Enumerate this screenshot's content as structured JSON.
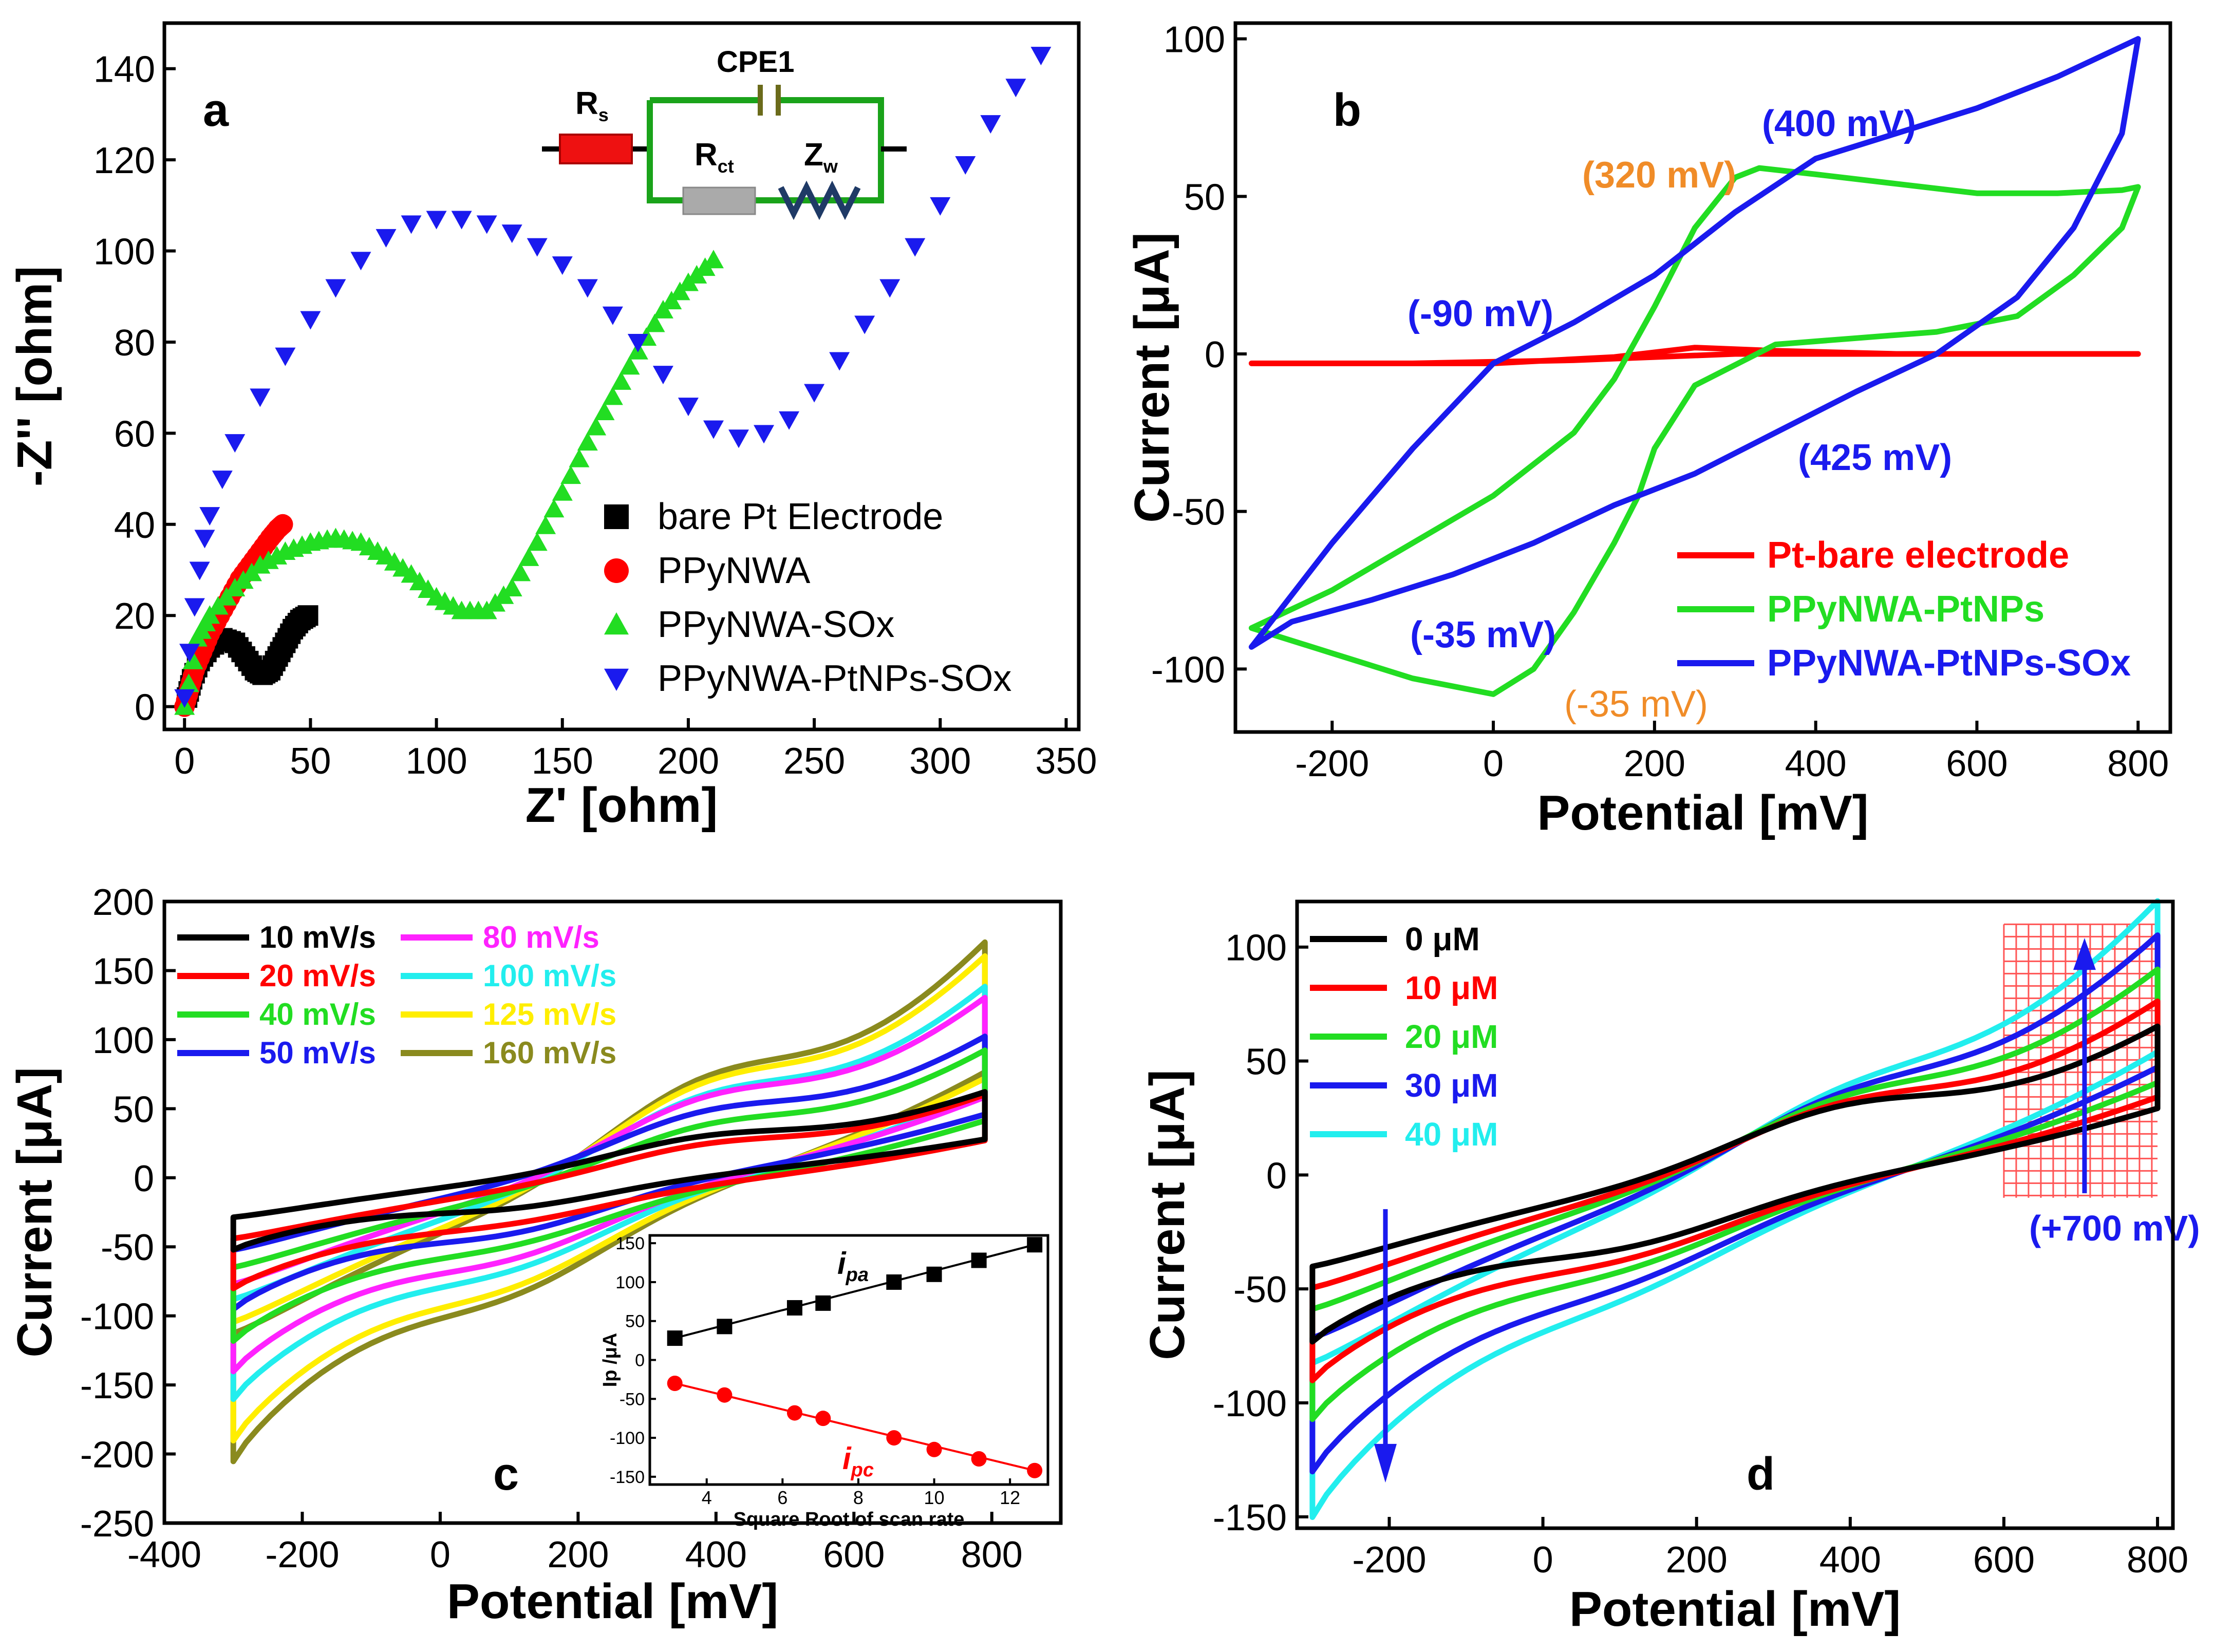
{
  "chart_data": [
    {
      "panel": "a",
      "type": "scatter",
      "xlabel": "Z' [ohm]",
      "ylabel": "-Z'' [ohm]",
      "xlim": [
        -8,
        355
      ],
      "ylim": [
        -5,
        150
      ],
      "xticks": [
        0,
        50,
        100,
        150,
        200,
        250,
        300,
        350
      ],
      "yticks": [
        0,
        20,
        40,
        60,
        80,
        100,
        120,
        140
      ],
      "legend_position": "bottom-right",
      "circuit_labels": {
        "rs": "R",
        "rs_sub": "s",
        "cpe": "CPE1",
        "rct": "R",
        "rct_sub": "ct",
        "zw": "Z",
        "zw_sub": "w"
      },
      "series": [
        {
          "name": "bare Pt Electrode",
          "marker": "square",
          "color": "#000000",
          "x": [
            1,
            3,
            6,
            10,
            15,
            20,
            24,
            28,
            31,
            34,
            37,
            40,
            43,
            46,
            49
          ],
          "y": [
            2,
            6,
            10,
            13,
            15,
            14,
            11,
            8,
            7,
            8,
            11,
            14,
            17,
            19,
            20
          ]
        },
        {
          "name": "PPyNWA",
          "marker": "circle",
          "color": "#ff0000",
          "x": [
            0,
            2,
            4,
            7,
            10,
            14,
            18,
            22,
            26,
            30,
            34,
            37,
            39
          ],
          "y": [
            0,
            4,
            8,
            12,
            16,
            20,
            24,
            28,
            31,
            34,
            37,
            39,
            40
          ]
        },
        {
          "name": "PPyNWA-SOx",
          "marker": "triangle-up",
          "color": "#22dd22",
          "x": [
            0,
            5,
            10,
            20,
            30,
            40,
            50,
            60,
            70,
            80,
            90,
            100,
            110,
            120,
            130,
            140,
            150,
            160,
            170,
            180,
            190,
            200,
            210
          ],
          "y": [
            0,
            15,
            20,
            26,
            31,
            34,
            36,
            37,
            36,
            33,
            29,
            24,
            21,
            21,
            26,
            36,
            47,
            58,
            68,
            78,
            87,
            93,
            98
          ]
        },
        {
          "name": "PPyNWA-PtNPs-SOx",
          "marker": "triangle-down",
          "color": "#1a1aee",
          "x": [
            0,
            2,
            4,
            6,
            8,
            10,
            15,
            20,
            30,
            40,
            50,
            60,
            70,
            80,
            90,
            100,
            110,
            120,
            130,
            140,
            150,
            160,
            170,
            180,
            190,
            200,
            210,
            220,
            230,
            240,
            250,
            260,
            270,
            280,
            290,
            300,
            310,
            320,
            330,
            340
          ],
          "y": [
            2,
            12,
            22,
            30,
            37,
            42,
            50,
            58,
            68,
            77,
            85,
            92,
            98,
            103,
            106,
            107,
            107,
            106,
            104,
            101,
            97,
            92,
            86,
            80,
            73,
            66,
            61,
            59,
            60,
            63,
            69,
            76,
            84,
            92,
            101,
            110,
            119,
            128,
            136,
            143
          ]
        }
      ]
    },
    {
      "panel": "b",
      "type": "line",
      "xlabel": "Potential [mV]",
      "ylabel": "Current [μA]",
      "xlim": [
        -320,
        840
      ],
      "ylim": [
        -120,
        105
      ],
      "xticks": [
        -200,
        0,
        200,
        400,
        600,
        800
      ],
      "yticks": [
        -100,
        -50,
        0,
        50,
        100
      ],
      "legend_position": "bottom-right",
      "series": [
        {
          "name": "Pt-bare electrode",
          "color": "#ff0000",
          "x": [
            -300,
            0,
            150,
            250,
            350,
            500,
            800,
            650,
            450,
            300,
            200,
            100,
            -100,
            -300
          ],
          "y": [
            -3,
            -3,
            -1,
            2,
            1,
            0,
            0,
            0,
            0,
            0,
            -1,
            -2,
            -3,
            -3
          ]
        },
        {
          "name": "PPyNWA-PtNPs",
          "color": "#22dd22",
          "x": [
            -300,
            -200,
            -100,
            0,
            100,
            150,
            200,
            250,
            300,
            330,
            400,
            500,
            600,
            700,
            780,
            800,
            780,
            720,
            650,
            550,
            450,
            350,
            250,
            200,
            180,
            150,
            100,
            50,
            0,
            -100,
            -200,
            -300
          ],
          "y": [
            -87,
            -75,
            -60,
            -45,
            -25,
            -8,
            15,
            40,
            56,
            59,
            57,
            54,
            51,
            51,
            52,
            53,
            40,
            25,
            12,
            7,
            5,
            3,
            -10,
            -30,
            -45,
            -60,
            -82,
            -100,
            -108,
            -103,
            -95,
            -87
          ]
        },
        {
          "name": "PPyNWA-PtNPs-SOx",
          "color": "#1a1aee",
          "x": [
            -300,
            -200,
            -100,
            0,
            100,
            200,
            300,
            400,
            500,
            600,
            700,
            800,
            780,
            720,
            650,
            550,
            450,
            350,
            250,
            150,
            50,
            -50,
            -150,
            -250,
            -300
          ],
          "y": [
            -93,
            -60,
            -30,
            -3,
            10,
            25,
            45,
            62,
            70,
            78,
            88,
            100,
            70,
            40,
            18,
            0,
            -12,
            -25,
            -38,
            -48,
            -60,
            -70,
            -78,
            -85,
            -93
          ]
        }
      ],
      "annotations": [
        {
          "text": "(400 mV)",
          "color": "#1a1aee"
        },
        {
          "text": "(320 mV)",
          "color": "#f08c28"
        },
        {
          "text": "(-90 mV)",
          "color": "#1a1aee"
        },
        {
          "text": "(425 mV)",
          "color": "#1a1aee"
        },
        {
          "text": "(-35 mV)",
          "color": "#1a1aee"
        },
        {
          "text": "(-35 mV)",
          "color": "#f08c28"
        }
      ]
    },
    {
      "panel": "c",
      "type": "line",
      "xlabel": "Potential [mV]",
      "ylabel": "Current [μA]",
      "xlim": [
        -400,
        900
      ],
      "ylim": [
        -250,
        200
      ],
      "xticks": [
        -400,
        -200,
        0,
        200,
        400,
        600,
        800
      ],
      "yticks": [
        -250,
        -200,
        -150,
        -100,
        -50,
        0,
        50,
        100,
        150,
        200
      ],
      "legend_position": "top-left",
      "series": [
        {
          "name": "10 mV/s",
          "color": "#000000",
          "top": 62,
          "bottom": -52
        },
        {
          "name": "20 mV/s",
          "color": "#ff0000",
          "top": 60,
          "bottom": -80
        },
        {
          "name": "40 mV/s",
          "color": "#22dd22",
          "top": 92,
          "bottom": -118
        },
        {
          "name": "50 mV/s",
          "color": "#1a1aee",
          "top": 102,
          "bottom": -95
        },
        {
          "name": "80 mV/s",
          "color": "#ff22ff",
          "top": 130,
          "bottom": -140
        },
        {
          "name": "100 mV/s",
          "color": "#22eeee",
          "top": 138,
          "bottom": -160
        },
        {
          "name": "125 mV/s",
          "color": "#ffee00",
          "top": 160,
          "bottom": -190
        },
        {
          "name": "160 mV/s",
          "color": "#8a8a1e",
          "top": 170,
          "bottom": -205
        }
      ],
      "inset": {
        "xlabel": "Square Root of scan rate",
        "ylabel": "Ip /μA",
        "xlim": [
          2.5,
          13
        ],
        "ylim": [
          -160,
          160
        ],
        "xticks": [
          4,
          6,
          8,
          10,
          12
        ],
        "yticks": [
          -150,
          -100,
          -50,
          0,
          50,
          100,
          150
        ],
        "series": [
          {
            "name": "i",
            "sub": "pa",
            "color": "#000000",
            "x": [
              3.16,
              4.47,
              6.32,
              7.07,
              8.94,
              10.0,
              11.18,
              12.65
            ],
            "y": [
              28,
              43,
              67,
              73,
              100,
              110,
              128,
              148
            ]
          },
          {
            "name": "i",
            "sub": "pc",
            "color": "#ff0000",
            "x": [
              3.16,
              4.47,
              6.32,
              7.07,
              8.94,
              10.0,
              11.18,
              12.65
            ],
            "y": [
              -30,
              -45,
              -68,
              -75,
              -100,
              -115,
              -127,
              -142
            ]
          }
        ]
      }
    },
    {
      "panel": "d",
      "type": "line",
      "xlabel": "Potential [mV]",
      "ylabel": "Current [μA]",
      "xlim": [
        -320,
        820
      ],
      "ylim": [
        -155,
        120
      ],
      "xticks": [
        -200,
        0,
        200,
        400,
        600,
        800
      ],
      "yticks": [
        -150,
        -100,
        -50,
        0,
        50,
        100
      ],
      "legend_position": "top-left",
      "series": [
        {
          "name": "0 μM",
          "color": "#000000",
          "top": 65,
          "bottom": -73
        },
        {
          "name": "10 μM",
          "color": "#ff0000",
          "top": 76,
          "bottom": -90
        },
        {
          "name": "20 μM",
          "color": "#22dd22",
          "top": 90,
          "bottom": -107
        },
        {
          "name": "30 μM",
          "color": "#1a1aee",
          "top": 105,
          "bottom": -130
        },
        {
          "name": "40 μM",
          "color": "#22eeee",
          "top": 120,
          "bottom": -150
        }
      ],
      "annotations": [
        {
          "text": "(+700 mV)",
          "color": "#1a1aee"
        }
      ]
    }
  ]
}
